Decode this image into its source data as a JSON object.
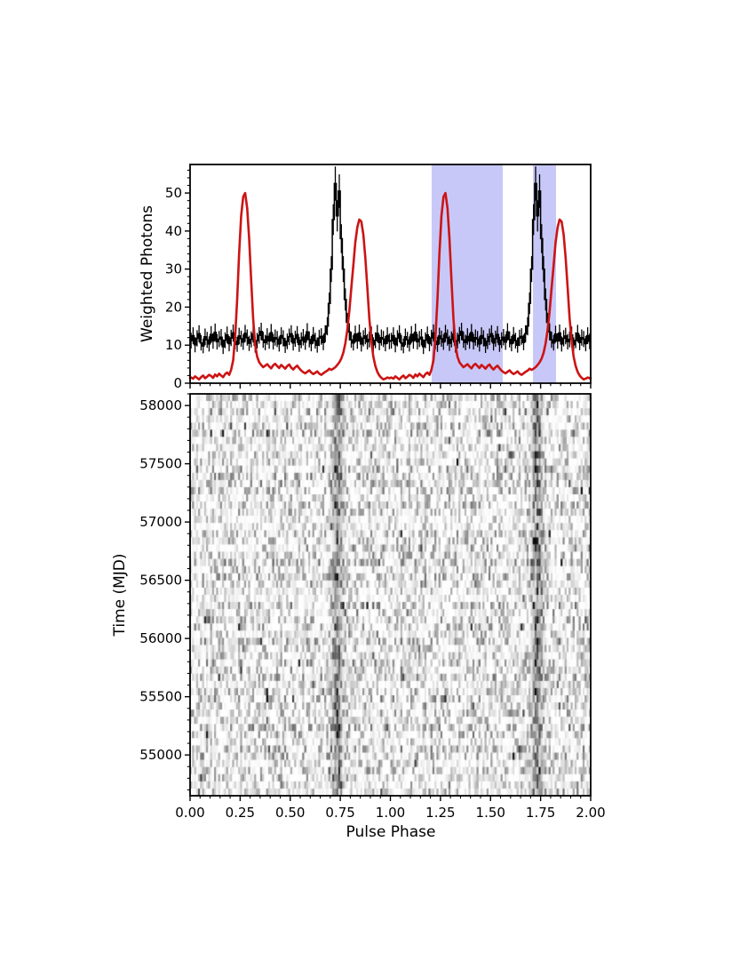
{
  "figure": {
    "background": "#ffffff"
  },
  "chart_data": [
    {
      "type": "line",
      "panel": "pulse-profile",
      "title": "",
      "xlabel": "",
      "ylabel": "Weighted Photons",
      "xlim": [
        0,
        2
      ],
      "ylim": [
        0,
        57.5
      ],
      "grid": false,
      "x_major_ticks": [
        0,
        0.25,
        0.5,
        0.75,
        1.0,
        1.25,
        1.5,
        1.75,
        2.0
      ],
      "x_tick_labels_shown": false,
      "x_minor_step": 0.05,
      "y_ticks": [
        0,
        10,
        20,
        30,
        40,
        50
      ],
      "y_minor_step": 2,
      "shade_color": "#c8c8f8",
      "shaded_regions": [
        {
          "from": 1.206,
          "to": 1.561
        },
        {
          "from": 1.712,
          "to": 1.827
        }
      ],
      "series": [
        {
          "name": "gamma-ray-weighted-counts",
          "color": "#000000",
          "style": "histogram-errorbar",
          "bins_per_period": 100,
          "periods": 2,
          "error_coeff": 0.62,
          "values": [
            11.2,
            12.5,
            10.1,
            11.8,
            13.0,
            10.6,
            9.8,
            12.2,
            11.4,
            10.3,
            12.8,
            11.1,
            13.4,
            10.9,
            11.6,
            12.1,
            9.6,
            11.3,
            12.7,
            10.4,
            11.9,
            13.2,
            11.0,
            10.2,
            12.4,
            11.7,
            10.8,
            13.1,
            12.0,
            10.5,
            11.5,
            12.9,
            10.0,
            11.2,
            12.6,
            13.6,
            11.4,
            10.7,
            12.3,
            11.1,
            13.3,
            10.9,
            12.0,
            11.6,
            10.3,
            12.5,
            11.8,
            9.9,
            11.0,
            12.2,
            13.0,
            10.6,
            11.7,
            12.8,
            10.2,
            11.3,
            12.1,
            10.8,
            13.5,
            11.5,
            10.4,
            12.6,
            11.2,
            10.0,
            11.9,
            12.3,
            10.7,
            13.0,
            15.0,
            21.0,
            30.0,
            43.0,
            52.5,
            44.0,
            50.5,
            38.0,
            30.0,
            22.0,
            16.0,
            13.5,
            11.4,
            10.6,
            12.9,
            11.1,
            13.2,
            10.3,
            11.8,
            12.4,
            10.9,
            11.5,
            12.7,
            10.1,
            11.3,
            13.1,
            10.7,
            12.0,
            11.6,
            10.4,
            12.5,
            11.0
          ]
        },
        {
          "name": "radio-profile",
          "color": "#cc1414",
          "style": "line",
          "points_per_period": 100,
          "periods": 2,
          "values": [
            1.5,
            1.2,
            1.8,
            1.4,
            1.0,
            1.6,
            2.0,
            1.3,
            1.7,
            2.2,
            1.9,
            1.4,
            2.3,
            1.8,
            2.5,
            2.0,
            1.6,
            2.4,
            2.8,
            2.2,
            3.5,
            6.0,
            12.0,
            22.0,
            34.0,
            44.0,
            49.0,
            50.0,
            46.0,
            38.0,
            27.0,
            17.0,
            10.0,
            7.0,
            5.5,
            4.8,
            4.2,
            4.6,
            5.0,
            4.4,
            3.9,
            4.7,
            5.1,
            4.5,
            4.0,
            4.8,
            4.3,
            3.8,
            4.5,
            4.9,
            4.1,
            3.6,
            4.2,
            4.6,
            3.9,
            3.3,
            2.9,
            2.6,
            3.0,
            3.4,
            2.8,
            2.4,
            2.7,
            3.1,
            2.5,
            2.2,
            2.6,
            3.0,
            3.3,
            3.8,
            3.5,
            3.8,
            4.2,
            4.8,
            5.5,
            6.5,
            8.0,
            10.5,
            14.0,
            19.0,
            25.0,
            31.0,
            37.0,
            41.0,
            43.0,
            42.5,
            39.0,
            33.0,
            25.0,
            17.0,
            11.0,
            7.0,
            4.5,
            3.0,
            2.0,
            1.4,
            1.0,
            1.2,
            1.5,
            1.3
          ]
        }
      ]
    },
    {
      "type": "heatmap",
      "panel": "phaseogram",
      "title": "",
      "xlabel": "Pulse Phase",
      "ylabel": "Time (MJD)",
      "xlim": [
        0,
        2
      ],
      "ylim": [
        54650,
        58100
      ],
      "x_ticks": [
        "0.00",
        "0.25",
        "0.50",
        "0.75",
        "1.00",
        "1.25",
        "1.50",
        "1.75",
        "2.00"
      ],
      "x_minor_step": 0.05,
      "y_ticks": [
        55000,
        55500,
        56000,
        56500,
        57000,
        57500,
        58000
      ],
      "y_minor_step": 100,
      "colormap": "grays-inverted",
      "rows": 56,
      "cols_per_period": 100,
      "periods": 2,
      "seed": 1234567,
      "base_noise": 0.5,
      "speckle_prob": 0.02,
      "pulse_band": {
        "phase_center": 0.735,
        "sigma": 0.016,
        "strength": 0.85
      }
    }
  ]
}
